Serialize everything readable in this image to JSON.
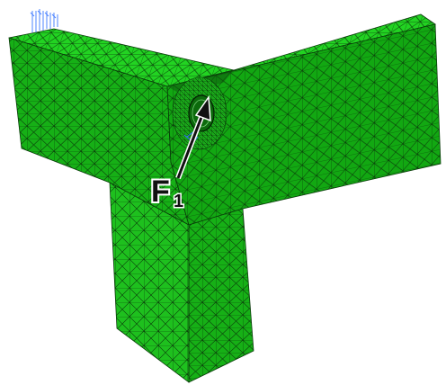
{
  "figure": {
    "colors": {
      "background": "#ffffff",
      "mesh_fill_top": "#22d322",
      "mesh_fill_front": "#16b016",
      "mesh_fill_side": "#12a812",
      "mesh_fill_leg": "#1ec01e",
      "mesh_lines": "#0a3a0a",
      "constraint_marks": "#2f6fff",
      "force_arrow": "#111111"
    },
    "force_label": {
      "letter": "F",
      "subscript": "1"
    },
    "constraint_symbol": "fixed-support-arrows",
    "hole_feature": "refined-mesh-hole"
  }
}
